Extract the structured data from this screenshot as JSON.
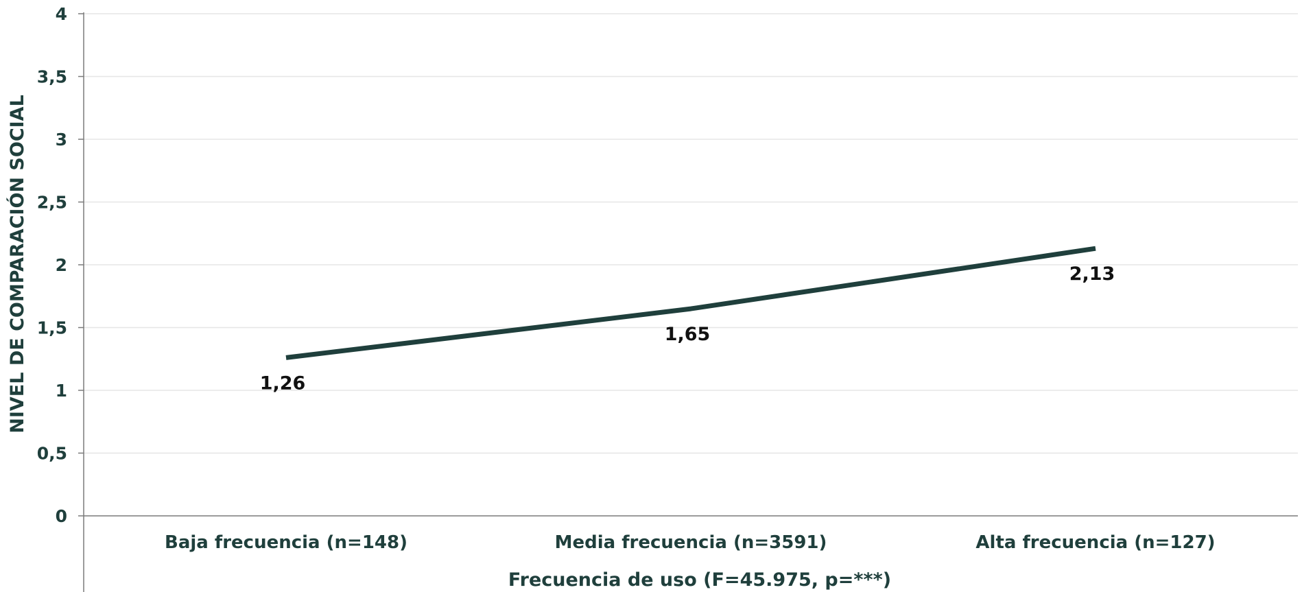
{
  "chart_data": {
    "type": "line",
    "title": "",
    "xlabel": "Frecuencia de uso (F=45.975, p=***)",
    "ylabel": "NIVEL DE COMPARACIÓN SOCIAL",
    "categories": [
      "Baja frecuencia (n=148)",
      "Media frecuencia (n=3591)",
      "Alta frecuencia (n=127)"
    ],
    "series": [
      {
        "values": [
          1.26,
          1.65,
          2.13
        ],
        "data_labels": [
          "1,26",
          "1,65",
          "2,13"
        ]
      }
    ],
    "ylim": [
      0,
      4
    ],
    "yticks": [
      0,
      0.5,
      1,
      1.5,
      2,
      2.5,
      3,
      3.5,
      4
    ],
    "ytick_labels": [
      "0",
      "0,5",
      "1",
      "1,5",
      "2",
      "2,5",
      "3",
      "3,5",
      "4"
    ],
    "grid": "horizontal",
    "legend": "none",
    "colors": {
      "line": "#1f3f3c",
      "axis_text": "#1f3f3c",
      "grid": "#e6e6e6",
      "axis": "#7a7a7a"
    }
  }
}
